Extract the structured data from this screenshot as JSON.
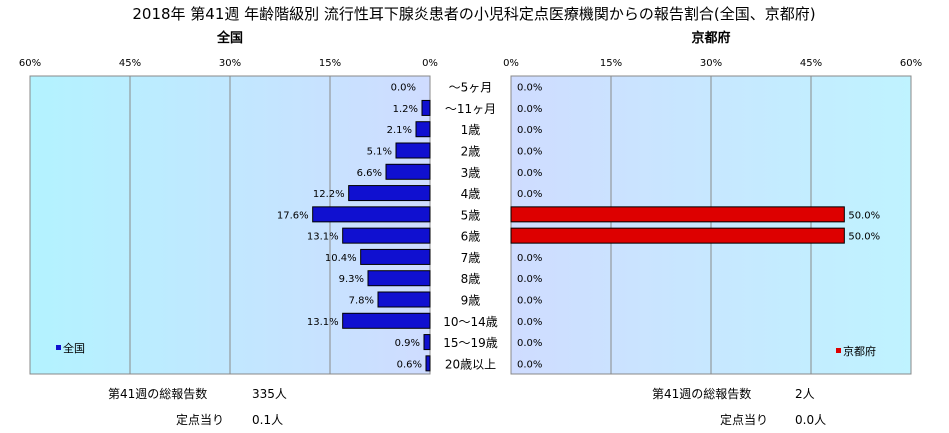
{
  "chart_data": {
    "type": "bar",
    "orientation": "horizontal-butterfly",
    "title": "2018年 第41週 年齢階級別 流行性耳下腺炎患者の小児科定点医療機関からの報告割合(全国、京都府)",
    "categories": [
      "～5ヶ月",
      "～11ヶ月",
      "1歳",
      "2歳",
      "3歳",
      "4歳",
      "5歳",
      "6歳",
      "7歳",
      "8歳",
      "9歳",
      "10～14歳",
      "15～19歳",
      "20歳以上"
    ],
    "xlim": [
      0,
      60
    ],
    "ticks": [
      "60%",
      "45%",
      "30%",
      "15%",
      "0%"
    ],
    "ticks_right": [
      "0%",
      "15%",
      "30%",
      "45%",
      "60%"
    ],
    "grid": true,
    "series": [
      {
        "name": "全国",
        "panel_title": "全国",
        "side": "left",
        "color": "#1010d0",
        "values": [
          0.0,
          1.2,
          2.1,
          5.1,
          6.6,
          12.2,
          17.6,
          13.1,
          10.4,
          9.3,
          7.8,
          13.1,
          0.9,
          0.6
        ],
        "labels": [
          "0.0%",
          "1.2%",
          "2.1%",
          "5.1%",
          "6.6%",
          "12.2%",
          "17.6%",
          "13.1%",
          "10.4%",
          "9.3%",
          "7.8%",
          "13.1%",
          "0.9%",
          "0.6%"
        ],
        "legend": "全国",
        "legend_position": "bottom-left"
      },
      {
        "name": "京都府",
        "panel_title": "京都府",
        "side": "right",
        "color": "#dd0000",
        "values": [
          0.0,
          0.0,
          0.0,
          0.0,
          0.0,
          0.0,
          50.0,
          50.0,
          0.0,
          0.0,
          0.0,
          0.0,
          0.0,
          0.0
        ],
        "labels": [
          "0.0%",
          "0.0%",
          "0.0%",
          "0.0%",
          "0.0%",
          "0.0%",
          "50.0%",
          "50.0%",
          "0.0%",
          "0.0%",
          "0.0%",
          "0.0%",
          "0.0%",
          "0.0%"
        ],
        "legend": "京都府",
        "legend_position": "bottom-right"
      }
    ],
    "plot_bg": "#bff0ff",
    "summary": {
      "left": {
        "total_label": "第41週の総報告数",
        "total_value": "335人",
        "per_label": "定点当り",
        "per_value": "0.1人"
      },
      "right": {
        "total_label": "第41週の総報告数",
        "total_value": "2人",
        "per_label": "定点当り",
        "per_value": "0.0人"
      }
    }
  }
}
